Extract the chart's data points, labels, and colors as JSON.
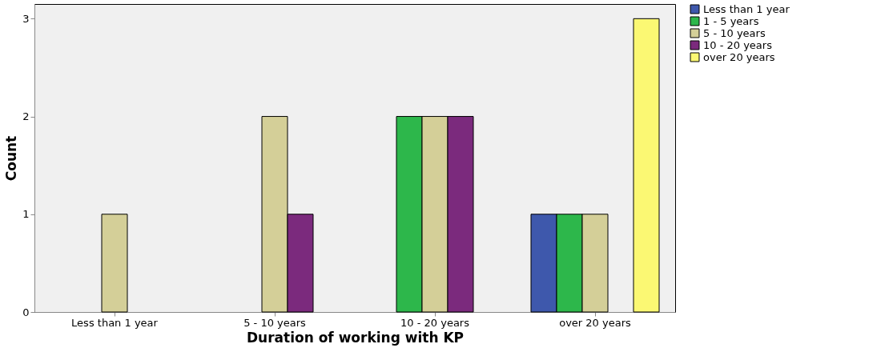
{
  "chart_data": {
    "type": "bar",
    "xlabel": "Duration of working with KP",
    "ylabel": "Count",
    "categories": [
      "Less than 1 year",
      "5 - 10 years",
      "10 - 20 years",
      "over 20 years"
    ],
    "series": [
      {
        "name": "Less than 1 year",
        "color": "#3e58ac",
        "values": [
          null,
          null,
          null,
          1
        ]
      },
      {
        "name": "1  - 5 years",
        "color": "#2db74b",
        "values": [
          null,
          null,
          2,
          1
        ]
      },
      {
        "name": "5 - 10 years",
        "color": "#d4cf98",
        "values": [
          1,
          2,
          2,
          1
        ]
      },
      {
        "name": "10 - 20 years",
        "color": "#7b2a7d",
        "values": [
          null,
          1,
          2,
          null
        ]
      },
      {
        "name": "over 20 years",
        "color": "#fbf873",
        "values": [
          null,
          null,
          null,
          3
        ]
      }
    ],
    "ylim": [
      0,
      3.15
    ],
    "yticks": [
      0,
      1,
      2,
      3
    ],
    "grid": false,
    "legend": "top right"
  }
}
